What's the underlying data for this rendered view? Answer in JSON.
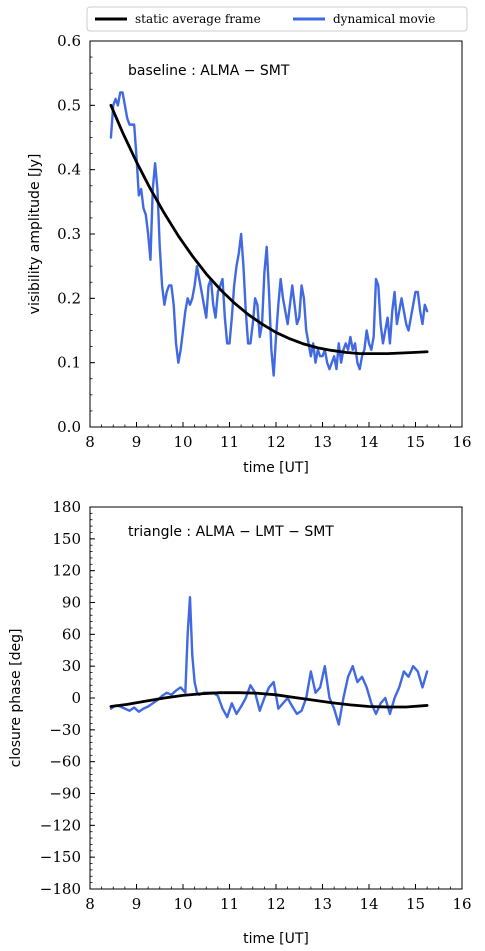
{
  "legend": {
    "items": [
      {
        "label": "static average frame",
        "color": "#000000"
      },
      {
        "label": "dynamical movie",
        "color": "#4169E1"
      }
    ]
  },
  "chart_data": [
    {
      "type": "line",
      "annotation": "baseline : ALMA − SMT",
      "xlabel": "time [UT]",
      "ylabel": "visibility amplitude [Jy]",
      "xlim": [
        8,
        16
      ],
      "ylim": [
        0.0,
        0.6
      ],
      "xticks": [
        "8",
        "9",
        "10",
        "11",
        "12",
        "13",
        "14",
        "15",
        "16"
      ],
      "yticks": [
        "0.0",
        "0.1",
        "0.2",
        "0.3",
        "0.4",
        "0.5",
        "0.6"
      ],
      "grid": false,
      "legend_position": "top",
      "series": [
        {
          "name": "static average frame",
          "color": "#000000",
          "x": [
            8.45,
            8.7,
            9.0,
            9.3,
            9.6,
            9.9,
            10.2,
            10.5,
            10.8,
            11.1,
            11.4,
            11.7,
            12.0,
            12.3,
            12.6,
            12.9,
            13.2,
            13.5,
            13.8,
            14.1,
            14.4,
            14.7,
            15.0,
            15.25
          ],
          "y": [
            0.5,
            0.458,
            0.412,
            0.37,
            0.332,
            0.297,
            0.266,
            0.238,
            0.214,
            0.193,
            0.175,
            0.16,
            0.147,
            0.137,
            0.129,
            0.123,
            0.119,
            0.116,
            0.114,
            0.114,
            0.114,
            0.115,
            0.116,
            0.117
          ]
        },
        {
          "name": "dynamical movie",
          "color": "#4169E1",
          "x": [
            8.45,
            8.5,
            8.55,
            8.6,
            8.65,
            8.7,
            8.75,
            8.8,
            8.85,
            8.9,
            8.95,
            9.0,
            9.05,
            9.1,
            9.15,
            9.2,
            9.25,
            9.3,
            9.35,
            9.4,
            9.45,
            9.5,
            9.55,
            9.6,
            9.65,
            9.7,
            9.75,
            9.8,
            9.85,
            9.9,
            9.95,
            10.0,
            10.05,
            10.1,
            10.15,
            10.2,
            10.25,
            10.3,
            10.35,
            10.4,
            10.45,
            10.5,
            10.55,
            10.6,
            10.65,
            10.7,
            10.75,
            10.8,
            10.85,
            10.9,
            10.95,
            11.0,
            11.05,
            11.1,
            11.15,
            11.2,
            11.25,
            11.3,
            11.35,
            11.4,
            11.45,
            11.5,
            11.55,
            11.6,
            11.65,
            11.7,
            11.75,
            11.8,
            11.85,
            11.9,
            11.95,
            12.0,
            12.05,
            12.1,
            12.15,
            12.2,
            12.25,
            12.3,
            12.35,
            12.4,
            12.45,
            12.5,
            12.55,
            12.6,
            12.65,
            12.7,
            12.75,
            12.8,
            12.85,
            12.9,
            12.95,
            13.0,
            13.05,
            13.1,
            13.15,
            13.2,
            13.25,
            13.3,
            13.35,
            13.4,
            13.45,
            13.5,
            13.55,
            13.6,
            13.65,
            13.7,
            13.75,
            13.8,
            13.85,
            13.9,
            13.95,
            14.0,
            14.05,
            14.1,
            14.15,
            14.2,
            14.25,
            14.3,
            14.35,
            14.4,
            14.45,
            14.5,
            14.55,
            14.6,
            14.65,
            14.7,
            14.75,
            14.8,
            14.85,
            14.9,
            14.95,
            15.0,
            15.05,
            15.1,
            15.15,
            15.2,
            15.25
          ],
          "y": [
            0.45,
            0.5,
            0.51,
            0.5,
            0.52,
            0.52,
            0.5,
            0.48,
            0.47,
            0.47,
            0.47,
            0.42,
            0.36,
            0.37,
            0.34,
            0.33,
            0.3,
            0.26,
            0.37,
            0.41,
            0.37,
            0.28,
            0.22,
            0.19,
            0.21,
            0.22,
            0.22,
            0.19,
            0.13,
            0.1,
            0.12,
            0.15,
            0.18,
            0.2,
            0.19,
            0.2,
            0.22,
            0.25,
            0.23,
            0.21,
            0.19,
            0.17,
            0.22,
            0.23,
            0.19,
            0.17,
            0.21,
            0.22,
            0.23,
            0.17,
            0.13,
            0.13,
            0.17,
            0.22,
            0.25,
            0.27,
            0.3,
            0.25,
            0.18,
            0.13,
            0.13,
            0.16,
            0.2,
            0.19,
            0.14,
            0.16,
            0.24,
            0.28,
            0.21,
            0.12,
            0.08,
            0.14,
            0.19,
            0.23,
            0.2,
            0.18,
            0.16,
            0.19,
            0.22,
            0.19,
            0.16,
            0.17,
            0.22,
            0.2,
            0.15,
            0.13,
            0.11,
            0.13,
            0.1,
            0.12,
            0.11,
            0.11,
            0.12,
            0.1,
            0.09,
            0.1,
            0.11,
            0.09,
            0.13,
            0.1,
            0.12,
            0.13,
            0.12,
            0.14,
            0.12,
            0.13,
            0.1,
            0.09,
            0.11,
            0.12,
            0.15,
            0.13,
            0.12,
            0.14,
            0.23,
            0.22,
            0.16,
            0.13,
            0.15,
            0.17,
            0.13,
            0.18,
            0.21,
            0.16,
            0.18,
            0.2,
            0.18,
            0.16,
            0.15,
            0.17,
            0.19,
            0.21,
            0.21,
            0.18,
            0.16,
            0.19,
            0.18
          ]
        }
      ]
    },
    {
      "type": "line",
      "annotation": "triangle : ALMA − LMT − SMT",
      "xlabel": "time [UT]",
      "ylabel": "closure phase [deg]",
      "xlim": [
        8,
        16
      ],
      "ylim": [
        -180,
        180
      ],
      "xticks": [
        "8",
        "9",
        "10",
        "11",
        "12",
        "13",
        "14",
        "15",
        "16"
      ],
      "yticks": [
        "180",
        "150",
        "120",
        "90",
        "60",
        "30",
        "0",
        "−30",
        "−60",
        "−90",
        "−120",
        "−150",
        "−180"
      ],
      "grid": false,
      "series": [
        {
          "name": "static average frame",
          "color": "#000000",
          "x": [
            8.45,
            8.8,
            9.2,
            9.6,
            10.0,
            10.4,
            10.8,
            11.2,
            11.6,
            12.0,
            12.4,
            12.8,
            13.2,
            13.6,
            14.0,
            14.4,
            14.8,
            15.25
          ],
          "y": [
            -8,
            -6,
            -3,
            0,
            2.5,
            4,
            5,
            5,
            4.5,
            3,
            0.5,
            -2,
            -4.5,
            -6.5,
            -8,
            -8.5,
            -8.5,
            -7
          ]
        },
        {
          "name": "dynamical movie",
          "color": "#4169E1",
          "x": [
            8.45,
            8.55,
            8.65,
            8.75,
            8.85,
            8.95,
            9.05,
            9.15,
            9.25,
            9.35,
            9.45,
            9.55,
            9.65,
            9.75,
            9.85,
            9.95,
            10.05,
            10.1,
            10.15,
            10.2,
            10.25,
            10.3,
            10.35,
            10.45,
            10.55,
            10.65,
            10.75,
            10.85,
            10.95,
            11.05,
            11.15,
            11.25,
            11.35,
            11.45,
            11.55,
            11.65,
            11.75,
            11.85,
            11.95,
            12.05,
            12.15,
            12.25,
            12.35,
            12.45,
            12.55,
            12.65,
            12.75,
            12.85,
            12.95,
            13.05,
            13.15,
            13.25,
            13.35,
            13.45,
            13.55,
            13.65,
            13.75,
            13.85,
            13.95,
            14.05,
            14.15,
            14.25,
            14.35,
            14.45,
            14.55,
            14.65,
            14.75,
            14.85,
            14.95,
            15.05,
            15.15,
            15.25
          ],
          "y": [
            -10,
            -7,
            -8,
            -10,
            -12,
            -9,
            -13,
            -10,
            -8,
            -5,
            -2,
            2,
            5,
            3,
            7,
            10,
            5,
            60,
            95,
            40,
            15,
            5,
            3,
            5,
            5,
            5,
            2,
            -10,
            -18,
            -5,
            -15,
            -8,
            0,
            12,
            5,
            -12,
            0,
            10,
            15,
            -10,
            -5,
            0,
            -8,
            -15,
            -12,
            0,
            25,
            5,
            10,
            30,
            0,
            -10,
            -25,
            0,
            20,
            30,
            15,
            20,
            10,
            -5,
            -15,
            -5,
            0,
            -15,
            0,
            10,
            25,
            20,
            30,
            25,
            10,
            25
          ]
        }
      ]
    }
  ]
}
